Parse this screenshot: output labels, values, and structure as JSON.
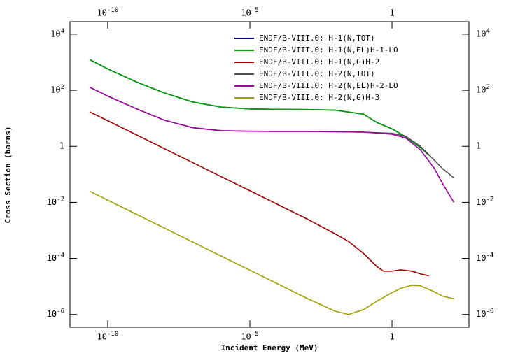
{
  "chart_data": {
    "type": "line",
    "x_label": "Incident Energy (MeV)",
    "y_label": "Cross Section (barns)",
    "xscale": "log",
    "yscale": "log",
    "xlim": [
      4.7e-12,
      510
    ],
    "ylim": [
      3.5e-07,
      28000
    ],
    "xticks": [
      {
        "value": 1e-10,
        "label": "10^-10"
      },
      {
        "value": 1e-05,
        "label": "10^-5"
      },
      1
    ],
    "yticks": [
      {
        "value": 10000,
        "label": "10^4"
      },
      {
        "value": 100,
        "label": "10^2"
      },
      1,
      {
        "value": 0.01,
        "label": "10^-2"
      },
      {
        "value": 0.0001,
        "label": "10^-4"
      },
      {
        "value": 1e-06,
        "label": "10^-6"
      }
    ],
    "grid": false,
    "legend": "upper-right",
    "series": [
      {
        "name": "ENDF/B-VIII.0: H-1(N,TOT)",
        "color": "#0000a0",
        "x": [
          2.3e-11,
          1e-10,
          1e-09,
          1e-08,
          1e-07,
          1e-06,
          1e-05,
          0.0001,
          0.001,
          0.01,
          0.1,
          0.3,
          1,
          3,
          10,
          20
        ],
        "values": [
          1250,
          580,
          200,
          80,
          38,
          25,
          21.5,
          20.8,
          20.5,
          19.5,
          14,
          7,
          4.2,
          2.2,
          0.9,
          0.48
        ]
      },
      {
        "name": "ENDF/B-VIII.0: H-1(N,EL)H-1-LO",
        "color": "#00a000",
        "x": [
          2.3e-11,
          1e-10,
          1e-09,
          1e-08,
          1e-07,
          1e-06,
          1e-05,
          0.0001,
          0.001,
          0.01,
          0.1,
          0.3,
          1,
          3,
          10,
          20
        ],
        "values": [
          1250,
          580,
          200,
          80,
          38,
          25,
          21.5,
          20.8,
          20.5,
          19.5,
          14,
          7,
          4.2,
          2.2,
          0.9,
          0.48
        ]
      },
      {
        "name": "ENDF/B-VIII.0: H-1(N,G)H-2",
        "color": "#a00000",
        "x": [
          2.3e-11,
          1e-10,
          1e-09,
          1e-08,
          1e-07,
          1e-06,
          1e-05,
          0.0001,
          0.001,
          0.01,
          0.03,
          0.1,
          0.3,
          0.5,
          1,
          2,
          5,
          10,
          20
        ],
        "values": [
          17,
          8.2,
          2.6,
          0.82,
          0.26,
          0.082,
          0.026,
          0.0082,
          0.0026,
          0.00075,
          0.0004,
          0.00015,
          5e-05,
          3.5e-05,
          3.5e-05,
          3.9e-05,
          3.5e-05,
          2.8e-05,
          2.4e-05
        ]
      },
      {
        "name": "ENDF/B-VIII.0: H-2(N,TOT)",
        "color": "#505050",
        "x": [
          2.3e-11,
          1e-10,
          1e-09,
          1e-08,
          1e-07,
          1e-06,
          1e-05,
          0.0001,
          0.001,
          0.01,
          0.1,
          1,
          3,
          10,
          30,
          60,
          150
        ],
        "values": [
          130,
          62,
          22,
          8.5,
          4.6,
          3.6,
          3.45,
          3.4,
          3.4,
          3.3,
          3.2,
          2.9,
          2.3,
          1.0,
          0.33,
          0.16,
          0.075
        ]
      },
      {
        "name": "ENDF/B-VIII.0: H-2(N,EL)H-2-LO",
        "color": "#a000a0",
        "x": [
          2.3e-11,
          1e-10,
          1e-09,
          1e-08,
          1e-07,
          1e-06,
          1e-05,
          0.0001,
          0.001,
          0.01,
          0.1,
          1,
          3,
          10,
          30,
          60,
          150
        ],
        "values": [
          130,
          62,
          22,
          8.5,
          4.6,
          3.6,
          3.45,
          3.4,
          3.4,
          3.3,
          3.2,
          2.7,
          2.0,
          0.75,
          0.17,
          0.047,
          0.01
        ]
      },
      {
        "name": "ENDF/B-VIII.0: H-2(N,G)H-3",
        "color": "#a0a000",
        "x": [
          2.3e-11,
          1e-10,
          1e-09,
          1e-08,
          1e-07,
          1e-06,
          1e-05,
          0.0001,
          0.001,
          0.01,
          0.03,
          0.1,
          0.3,
          1,
          2,
          5,
          10,
          30,
          60,
          150
        ],
        "values": [
          0.025,
          0.012,
          0.0038,
          0.0012,
          0.00038,
          0.00012,
          3.8e-05,
          1.2e-05,
          3.8e-06,
          1.3e-06,
          1e-06,
          1.5e-06,
          3e-06,
          6e-06,
          8.5e-06,
          1.1e-05,
          1.05e-05,
          6.5e-06,
          4.5e-06,
          3.6e-06
        ]
      }
    ]
  }
}
